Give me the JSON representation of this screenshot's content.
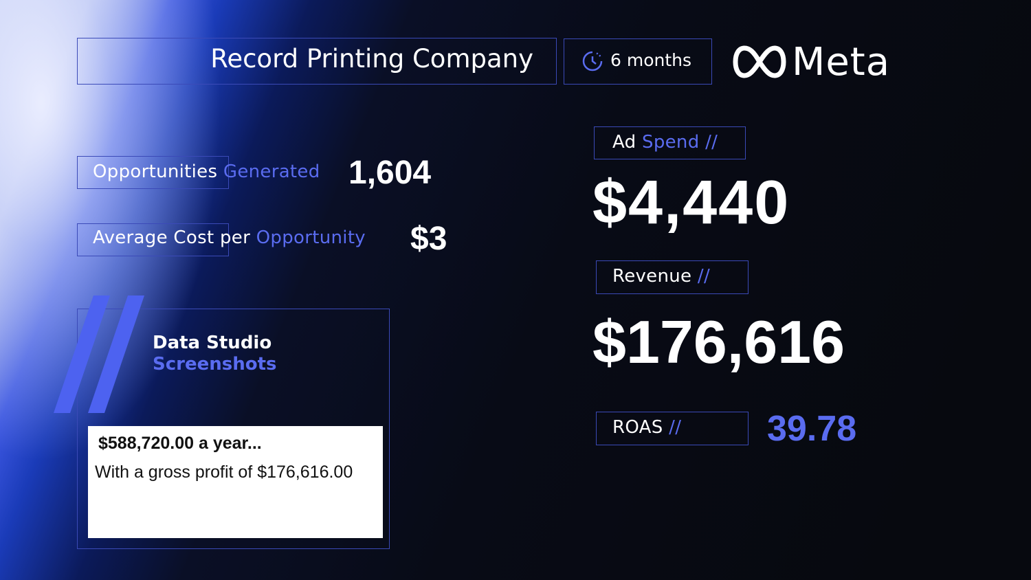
{
  "header": {
    "company": "Record Printing Company",
    "duration": "6 months",
    "brand": "Meta"
  },
  "left_metrics": [
    {
      "label_white": "Opportunities",
      "label_blue": "Generated",
      "value": "1,604"
    },
    {
      "label_white": "Average Cost per",
      "label_blue": "Opportunity",
      "value": "$3"
    }
  ],
  "card": {
    "title_white": "Data Studio",
    "title_blue": "Screenshots",
    "line1": "$588,720.00 a year...",
    "line2": "With a gross profit of $176,616.00"
  },
  "right_metrics": {
    "ad_spend": {
      "label_white": "Ad",
      "label_blue": "Spend",
      "sep": "//",
      "value": "$4,440"
    },
    "revenue": {
      "label_white": "Revenue",
      "sep": "//",
      "value": "$176,616"
    },
    "roas": {
      "label_white": "ROAS",
      "sep": "//",
      "value": "39.78"
    }
  },
  "colors": {
    "accent": "#5a6cf0",
    "border": "#3b4ab8",
    "background": "#080b16"
  }
}
